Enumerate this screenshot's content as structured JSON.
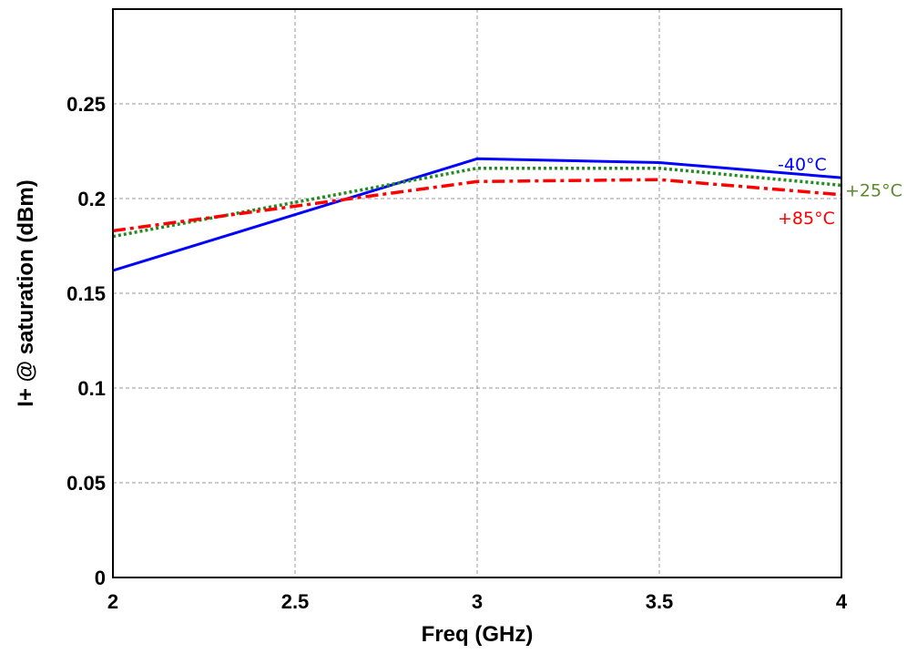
{
  "chart_data": {
    "type": "line",
    "xlabel": "Freq (GHz)",
    "ylabel": "I+ @ saturation (dBm)",
    "xlim": [
      2,
      4
    ],
    "ylim": [
      0,
      0.3
    ],
    "x_ticks": [
      2,
      2.5,
      3,
      3.5,
      4
    ],
    "x_tick_labels": [
      "2",
      "2.5",
      "3",
      "3.5",
      "4"
    ],
    "y_ticks": [
      0,
      0.05,
      0.1,
      0.15,
      0.2,
      0.25
    ],
    "y_tick_labels": [
      "0",
      "0.05",
      "0.1",
      "0.15",
      "0.2",
      "0.25"
    ],
    "grid": true,
    "series": [
      {
        "name": "-40°C",
        "color": "#0000ff",
        "style": "solid",
        "x": [
          2,
          3,
          3.5,
          4
        ],
        "values": [
          0.162,
          0.221,
          0.219,
          0.211
        ]
      },
      {
        "name": "+25°C",
        "color": "#228b22",
        "style": "dotted",
        "x": [
          2,
          3,
          3.5,
          4
        ],
        "values": [
          0.18,
          0.216,
          0.216,
          0.207
        ]
      },
      {
        "name": "+85°C",
        "color": "#ff0000",
        "style": "dashdot",
        "x": [
          2,
          3,
          3.5,
          4
        ],
        "values": [
          0.183,
          0.209,
          0.21,
          0.202
        ]
      }
    ],
    "series_label_colors": [
      "#0000ff",
      "#5b8a2e",
      "#ff0000"
    ]
  }
}
